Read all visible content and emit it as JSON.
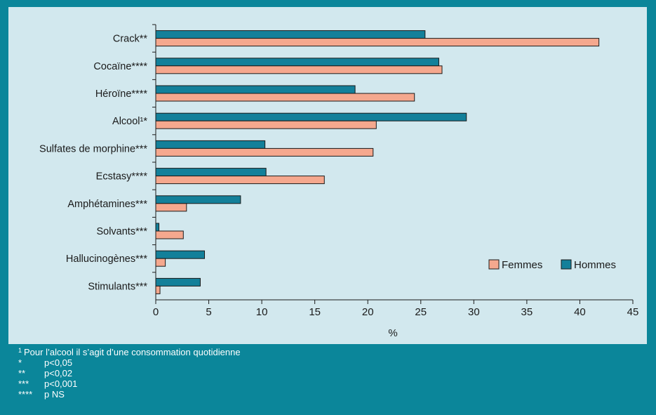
{
  "colors": {
    "background": "#0b869a",
    "panel": "#d2e8ee",
    "hommes": "#13809a",
    "femmes": "#f5a88e",
    "bar_stroke": "#1a1a1a",
    "footnote_text": "#ffffff"
  },
  "chart_data": {
    "type": "bar",
    "orientation": "horizontal",
    "categories": [
      "Crack**",
      "Cocaïne****",
      "Héroïne****",
      "Alcool¹*",
      "Sulfates de morphine***",
      "Ecstasy****",
      "Amphétamines***",
      "Solvants***",
      "Hallucinogènes***",
      "Stimulants***"
    ],
    "series": [
      {
        "name": "Hommes",
        "values": [
          25.4,
          26.7,
          18.8,
          29.3,
          10.3,
          10.4,
          8.0,
          0.3,
          4.6,
          4.2
        ]
      },
      {
        "name": "Femmes",
        "values": [
          41.8,
          27.0,
          24.4,
          20.8,
          20.5,
          15.9,
          2.9,
          2.6,
          0.9,
          0.4
        ]
      }
    ],
    "xlabel": "%",
    "ylabel": "",
    "xlim": [
      0,
      45
    ],
    "xticks": [
      "0",
      "5",
      "10",
      "15",
      "20",
      "25",
      "30",
      "35",
      "40",
      "45"
    ],
    "legend_order": [
      "Femmes",
      "Hommes"
    ],
    "legend_position": "bottom-right",
    "grid": false
  },
  "footnotes": [
    {
      "mark": "1",
      "text": "Pour l’alcool il s’agit d’une consommation quotidienne"
    },
    {
      "mark": "*",
      "text": "p<0,05"
    },
    {
      "mark": "**",
      "text": "p<0,02"
    },
    {
      "mark": "***",
      "text": "p<0,001"
    },
    {
      "mark": "****",
      "text": "p NS"
    }
  ]
}
